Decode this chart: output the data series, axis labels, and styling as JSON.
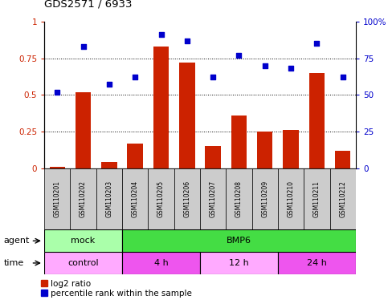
{
  "title": "GDS2571 / 6933",
  "samples": [
    "GSM110201",
    "GSM110202",
    "GSM110203",
    "GSM110204",
    "GSM110205",
    "GSM110206",
    "GSM110207",
    "GSM110208",
    "GSM110209",
    "GSM110210",
    "GSM110211",
    "GSM110212"
  ],
  "log2_ratio": [
    0.01,
    0.52,
    0.04,
    0.17,
    0.83,
    0.72,
    0.15,
    0.36,
    0.25,
    0.26,
    0.65,
    0.12
  ],
  "percentile": [
    0.52,
    0.83,
    0.57,
    0.62,
    0.91,
    0.87,
    0.62,
    0.77,
    0.7,
    0.68,
    0.85,
    0.62
  ],
  "bar_color": "#cc2200",
  "scatter_color": "#0000cc",
  "agent_row": [
    {
      "label": "mock",
      "start": 0,
      "end": 3,
      "color": "#aaffaa"
    },
    {
      "label": "BMP6",
      "start": 3,
      "end": 12,
      "color": "#44dd44"
    }
  ],
  "time_row": [
    {
      "label": "control",
      "start": 0,
      "end": 3,
      "color": "#ffaaff"
    },
    {
      "label": "4 h",
      "start": 3,
      "end": 6,
      "color": "#ee55ee"
    },
    {
      "label": "12 h",
      "start": 6,
      "end": 9,
      "color": "#ffaaff"
    },
    {
      "label": "24 h",
      "start": 9,
      "end": 12,
      "color": "#ee55ee"
    }
  ],
  "legend_red_label": "log2 ratio",
  "legend_blue_label": "percentile rank within the sample",
  "agent_label": "agent",
  "time_label": "time",
  "sample_bg": "#cccccc"
}
